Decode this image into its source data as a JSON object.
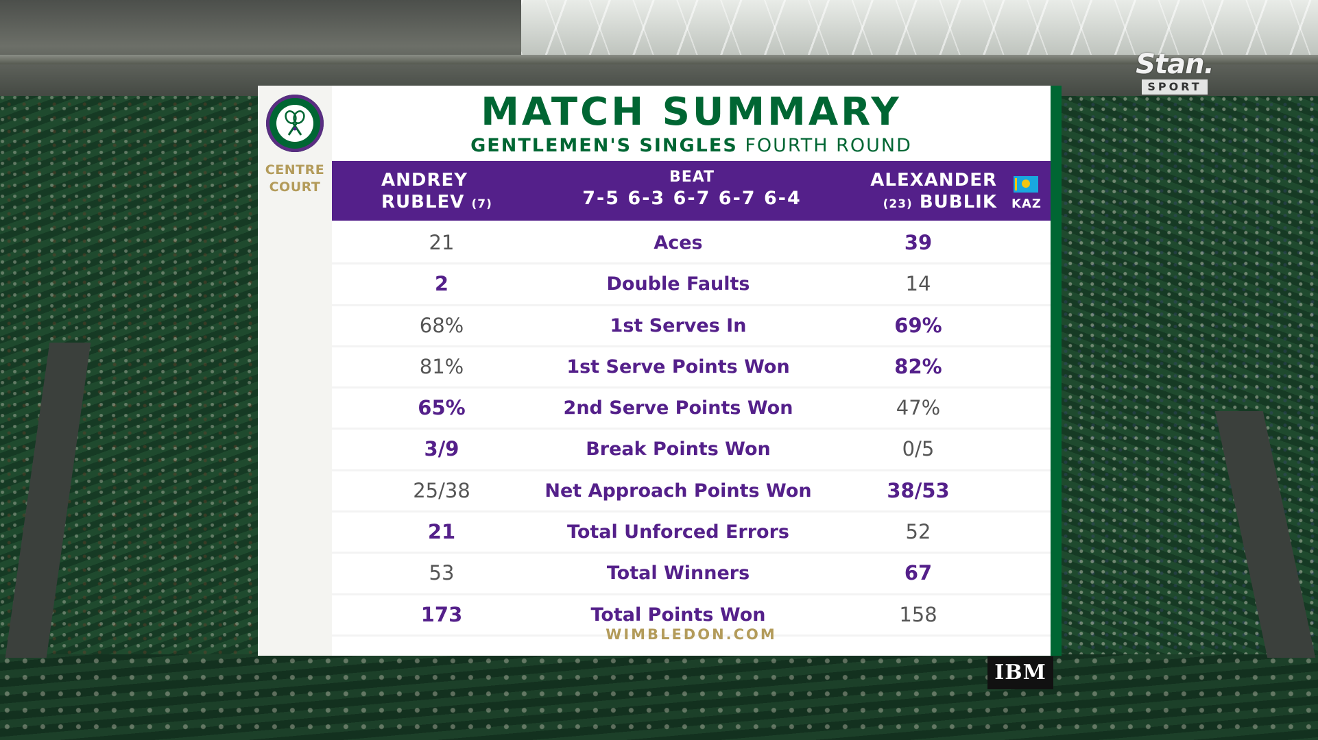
{
  "broadcaster": {
    "name": "Stan.",
    "sub": "SPORT"
  },
  "sponsor": {
    "name": "IBM"
  },
  "venue": {
    "crest": "wimbledon-crest",
    "court_line1": "CENTRE",
    "court_line2": "COURT"
  },
  "header": {
    "title": "MATCH SUMMARY",
    "event": "GENTLEMEN'S SINGLES",
    "round": "FOURTH ROUND"
  },
  "players": {
    "left": {
      "first": "ANDREY",
      "last": "RUBLEV",
      "seed": "(7)"
    },
    "right": {
      "first": "ALEXANDER",
      "last": "BUBLIK",
      "seed": "(23)",
      "country": "KAZ",
      "flag": "kazakhstan-flag"
    }
  },
  "result": {
    "verb": "BEAT",
    "score": "7-5 6-3 6-7 6-7 6-4"
  },
  "stats": [
    {
      "label": "Aces",
      "left": "21",
      "right": "39",
      "leader": "right"
    },
    {
      "label": "Double Faults",
      "left": "2",
      "right": "14",
      "leader": "left"
    },
    {
      "label": "1st Serves In",
      "left": "68%",
      "right": "69%",
      "leader": "right"
    },
    {
      "label": "1st Serve Points Won",
      "left": "81%",
      "right": "82%",
      "leader": "right"
    },
    {
      "label": "2nd Serve Points Won",
      "left": "65%",
      "right": "47%",
      "leader": "left"
    },
    {
      "label": "Break Points Won",
      "left": "3/9",
      "right": "0/5",
      "leader": "left"
    },
    {
      "label": "Net Approach Points Won",
      "left": "25/38",
      "right": "38/53",
      "leader": "right"
    },
    {
      "label": "Total Unforced Errors",
      "left": "21",
      "right": "52",
      "leader": "left"
    },
    {
      "label": "Total Winners",
      "left": "53",
      "right": "67",
      "leader": "right"
    },
    {
      "label": "Total Points Won",
      "left": "173",
      "right": "158",
      "leader": "left"
    }
  ],
  "footer": {
    "link": "WIMBLEDON.COM"
  },
  "colors": {
    "wimbledon_green": "#006633",
    "wimbledon_purple": "#54208a",
    "gold": "#b39b5a"
  }
}
